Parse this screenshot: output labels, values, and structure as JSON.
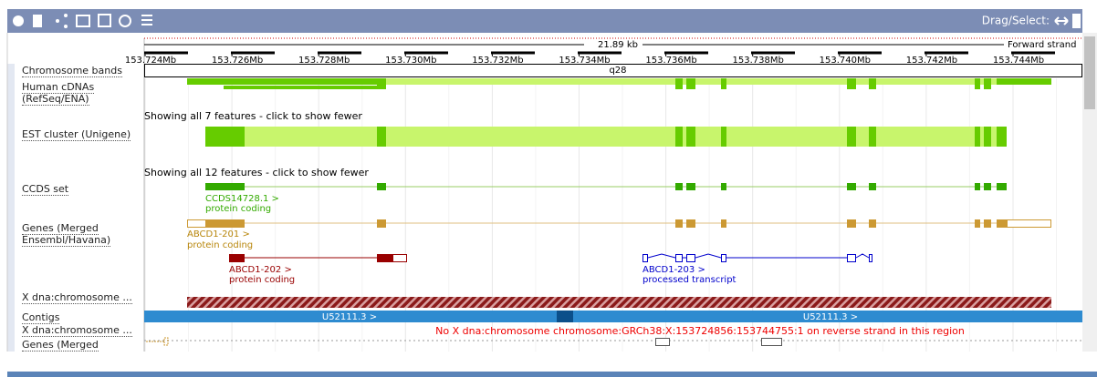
{
  "toolbar": {
    "drag_select": "Drag/Select:"
  },
  "ruler": {
    "length": "21.89 kb",
    "strand": "Forward strand",
    "ticks": [
      "153.724Mb",
      "153.726Mb",
      "153.728Mb",
      "153.730Mb",
      "153.732Mb",
      "153.734Mb",
      "153.736Mb",
      "153.738Mb",
      "153.740Mb",
      "153.742Mb",
      "153.744Mb"
    ]
  },
  "band": "q28",
  "tracks": [
    "Chromosome bands",
    "Human cDNAs (RefSeq/ENA)",
    "EST cluster (Unigene)",
    "CCDS set",
    "Genes (Merged Ensembl/Havana)",
    "X dna:chromosome ...",
    "Contigs",
    "X dna:chromosome ...",
    "Genes (Merged"
  ],
  "messages": [
    "Showing all 7 features - click to show fewer",
    "Showing all 12 features - click to show fewer"
  ],
  "transcripts": [
    {
      "name": "CCDS14728.1 >",
      "biotype": "protein coding"
    },
    {
      "name": "ABCD1-201 >",
      "biotype": "protein coding"
    },
    {
      "name": "ABCD1-202 >",
      "biotype": "protein coding"
    },
    {
      "name": "ABCD1-203 >",
      "biotype": "processed transcript"
    }
  ],
  "contigs": [
    "U52111.3 >",
    "U52111.3 >"
  ],
  "warning": "No X dna:chromosome chromosome:GRCh38:X:153724856:153744755:1 on reverse strand in this region"
}
